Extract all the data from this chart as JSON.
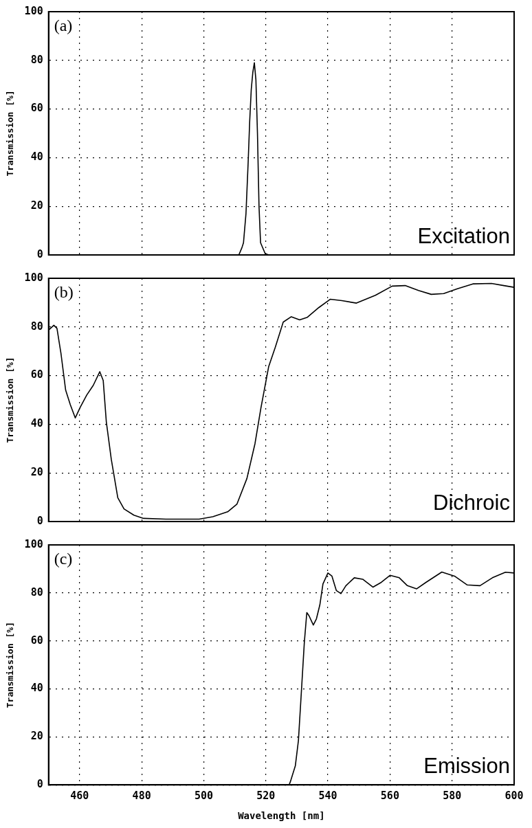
{
  "chart_data": [
    {
      "type": "line",
      "ylabel": "Transmission [%]",
      "xlim": [
        450,
        600
      ],
      "xticks": [
        460,
        480,
        500,
        520,
        540,
        560,
        580,
        600
      ],
      "ylim": [
        0,
        100
      ],
      "yticks": [
        0,
        20,
        40,
        60,
        80,
        100
      ],
      "grid": true,
      "tick_labels": "y",
      "marker": "none",
      "line_style": "solid",
      "annotations": [
        "(a)",
        "Excitation"
      ],
      "series": [
        {
          "color": "#000000",
          "x": [
            450,
            511.3,
            512.3,
            512.8,
            513.6,
            514.3,
            514.8,
            515.3,
            515.8,
            516.3,
            516.8,
            517.3,
            517.8,
            518.3,
            519.8,
            521,
            600
          ],
          "values": [
            0,
            0,
            3,
            5,
            17,
            38,
            55,
            68,
            75,
            79,
            72,
            50,
            20,
            5,
            0.5,
            0,
            0
          ]
        }
      ]
    },
    {
      "type": "line",
      "ylabel": "Transmission [%]",
      "xlim": [
        450,
        600
      ],
      "xticks": [
        460,
        480,
        500,
        520,
        540,
        560,
        580,
        600
      ],
      "ylim": [
        0,
        100
      ],
      "yticks": [
        0,
        20,
        40,
        60,
        80,
        100
      ],
      "grid": true,
      "tick_labels": "y",
      "marker": "none",
      "line_style": "solid",
      "annotations": [
        "(b)",
        "Dichroic"
      ],
      "series": [
        {
          "color": "#000000",
          "x": [
            450,
            451.7,
            452.7,
            454,
            455.5,
            457,
            458.6,
            460.2,
            462.3,
            464.4,
            466.5,
            467.6,
            468.6,
            470.2,
            472.3,
            474.3,
            477.5,
            480.6,
            487.8,
            498.5,
            502.9,
            507.7,
            510.7,
            513.9,
            516.5,
            518.4,
            520.9,
            523,
            525.6,
            528.2,
            530.9,
            533.4,
            537.1,
            540.8,
            544.5,
            549.2,
            555.3,
            560.7,
            564.9,
            569.2,
            573.3,
            577.3,
            581.7,
            586.7,
            592.7,
            596.7,
            600
          ],
          "values": [
            78.7,
            80.7,
            79.4,
            69,
            54,
            48,
            42.6,
            47,
            52,
            56,
            61.6,
            58,
            41,
            25.6,
            9.8,
            5.2,
            2.6,
            1.3,
            1,
            1,
            2,
            4,
            7.2,
            17.7,
            32,
            46.6,
            63.6,
            71.5,
            82,
            84.2,
            82.9,
            84,
            88,
            91.4,
            90.8,
            89.8,
            93,
            96.8,
            97,
            95,
            93.4,
            93.7,
            95.7,
            97.7,
            97.9,
            97,
            96.3
          ]
        }
      ]
    },
    {
      "type": "line",
      "xlabel": "Wavelength [nm]",
      "ylabel": "Transmission [%]",
      "xlim": [
        450,
        600
      ],
      "xticks": [
        460,
        480,
        500,
        520,
        540,
        560,
        580,
        600
      ],
      "ylim": [
        0,
        100
      ],
      "yticks": [
        0,
        20,
        40,
        60,
        80,
        100
      ],
      "grid": true,
      "marker": "none",
      "line_style": "solid",
      "annotations": [
        "(c)",
        "Emission"
      ],
      "series": [
        {
          "color": "#000000",
          "x": [
            450,
            527.5,
            527.9,
            529.5,
            530.5,
            531.6,
            532.4,
            533.2,
            533.9,
            535.3,
            536.3,
            537.4,
            538.4,
            540,
            541.3,
            542.7,
            544.2,
            545.8,
            548.5,
            551.2,
            554.5,
            557.2,
            560,
            563,
            565.6,
            568.6,
            571.6,
            576.7,
            580.8,
            584.9,
            589,
            593,
            597.2,
            600
          ],
          "values": [
            0,
            0,
            1.3,
            7.9,
            18.5,
            42,
            59.3,
            71.8,
            70.5,
            66.6,
            69.2,
            75,
            83.7,
            88.3,
            87,
            81,
            79.7,
            83,
            86.3,
            85.7,
            82.4,
            84.4,
            87.3,
            86.3,
            83,
            81.7,
            84.4,
            88.7,
            87,
            83.3,
            83,
            86.3,
            88.6,
            88.3
          ]
        }
      ]
    }
  ]
}
